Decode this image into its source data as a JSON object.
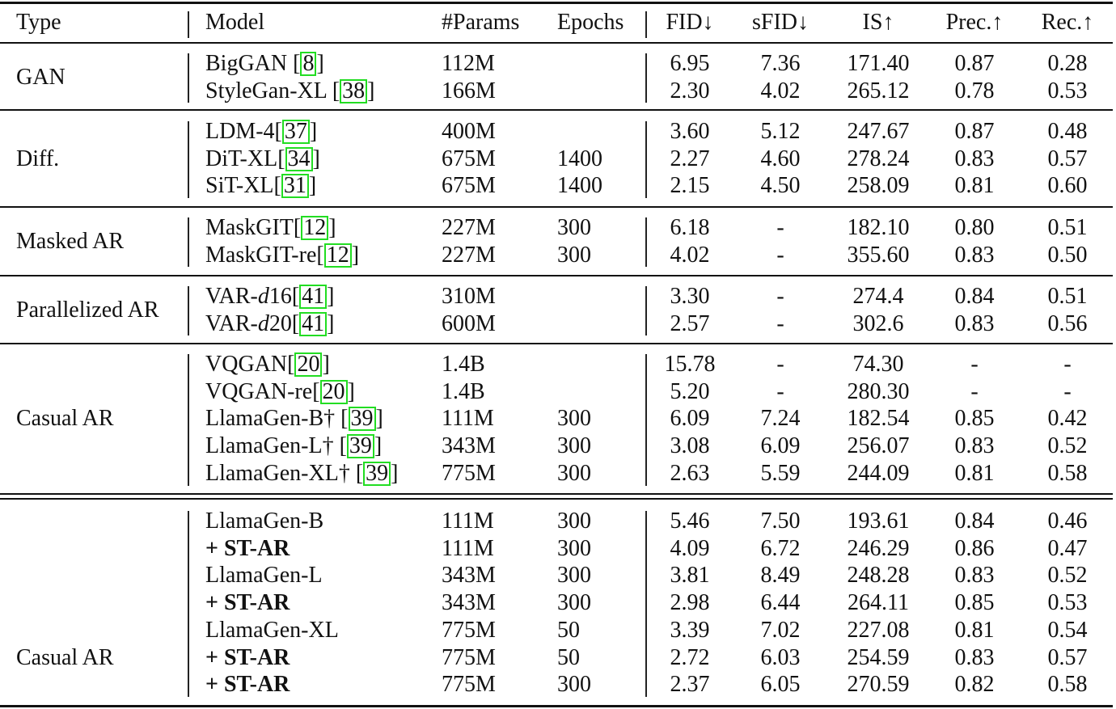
{
  "header": {
    "type": "Type",
    "model": "Model",
    "params": "#Params",
    "epochs": "Epochs",
    "fid": "FID↓",
    "sfid": "sFID↓",
    "is": "IS↑",
    "prec": "Prec.↑",
    "rec": "Rec.↑"
  },
  "colors": {
    "cite_border": "#22dd22",
    "rule": "#111111"
  },
  "groups": [
    {
      "type": "GAN",
      "rows": [
        {
          "model": "BigGAN ",
          "cite": "8",
          "params": "112M",
          "epochs": "",
          "fid": "6.95",
          "sfid": "7.36",
          "is": "171.40",
          "prec": "0.87",
          "rec": "0.28"
        },
        {
          "model": "StyleGan-XL ",
          "cite": "38",
          "params": "166M",
          "epochs": "",
          "fid": "2.30",
          "sfid": "4.02",
          "is": "265.12",
          "prec": "0.78",
          "rec": "0.53"
        }
      ]
    },
    {
      "type": "Diff.",
      "rows": [
        {
          "model": "LDM-4",
          "cite": "37",
          "params": "400M",
          "epochs": "",
          "fid": "3.60",
          "sfid": "5.12",
          "is": "247.67",
          "prec": "0.87",
          "rec": "0.48"
        },
        {
          "model": "DiT-XL",
          "cite": "34",
          "params": "675M",
          "epochs": "1400",
          "fid": "2.27",
          "sfid": "4.60",
          "is": "278.24",
          "prec": "0.83",
          "rec": "0.57"
        },
        {
          "model": "SiT-XL",
          "cite": "31",
          "params": "675M",
          "epochs": "1400",
          "fid": "2.15",
          "sfid": "4.50",
          "is": "258.09",
          "prec": "0.81",
          "rec": "0.60"
        }
      ]
    },
    {
      "type": "Masked AR",
      "rows": [
        {
          "model": "MaskGIT",
          "cite": "12",
          "params": "227M",
          "epochs": "300",
          "fid": "6.18",
          "sfid": "-",
          "is": "182.10",
          "prec": "0.80",
          "rec": "0.51"
        },
        {
          "model": "MaskGIT-re",
          "cite": "12",
          "params": "227M",
          "epochs": "300",
          "fid": "4.02",
          "sfid": "-",
          "is": "355.60",
          "prec": "0.83",
          "rec": "0.50"
        }
      ]
    },
    {
      "type": "Parallelized AR",
      "rows": [
        {
          "model": "VAR-",
          "model_it": "d",
          "model_suffix": "16",
          "cite": "41",
          "params": "310M",
          "epochs": "",
          "fid": "3.30",
          "sfid": "-",
          "is": "274.4",
          "prec": "0.84",
          "rec": "0.51"
        },
        {
          "model": "VAR-",
          "model_it": "d",
          "model_suffix": "20",
          "cite": "41",
          "params": "600M",
          "epochs": "",
          "fid": "2.57",
          "sfid": "-",
          "is": "302.6",
          "prec": "0.83",
          "rec": "0.56"
        }
      ]
    },
    {
      "type": "Casual AR",
      "rows": [
        {
          "model": "VQGAN",
          "cite": "20",
          "params": "1.4B",
          "epochs": "",
          "fid": "15.78",
          "sfid": "-",
          "is": "74.30",
          "prec": "-",
          "rec": "-"
        },
        {
          "model": "VQGAN-re",
          "cite": "20",
          "params": "1.4B",
          "epochs": "",
          "fid": "5.20",
          "sfid": "-",
          "is": "280.30",
          "prec": "-",
          "rec": "-"
        },
        {
          "model": "LlamaGen-B† ",
          "cite": "39",
          "params": "111M",
          "epochs": "300",
          "fid": "6.09",
          "sfid": "7.24",
          "is": "182.54",
          "prec": "0.85",
          "rec": "0.42"
        },
        {
          "model": "LlamaGen-L† ",
          "cite": "39",
          "params": "343M",
          "epochs": "300",
          "fid": "3.08",
          "sfid": "6.09",
          "is": "256.07",
          "prec": "0.83",
          "rec": "0.52"
        },
        {
          "model": "LlamaGen-XL† ",
          "cite": "39",
          "params": "775M",
          "epochs": "300",
          "fid": "2.63",
          "sfid": "5.59",
          "is": "244.09",
          "prec": "0.81",
          "rec": "0.58"
        }
      ]
    },
    {
      "type": "Casual AR",
      "rows": [
        {
          "model": "LlamaGen-B",
          "params": "111M",
          "epochs": "300",
          "fid": "5.46",
          "sfid": "7.50",
          "is": "193.61",
          "prec": "0.84",
          "rec": "0.46"
        },
        {
          "model": "+ ST-AR",
          "bold": true,
          "params": "111M",
          "epochs": "300",
          "fid": "4.09",
          "sfid": "6.72",
          "is": "246.29",
          "prec": "0.86",
          "rec": "0.47"
        },
        {
          "model": "LlamaGen-L",
          "params": "343M",
          "epochs": "300",
          "fid": "3.81",
          "sfid": "8.49",
          "is": "248.28",
          "prec": "0.83",
          "rec": "0.52"
        },
        {
          "model": "+ ST-AR",
          "bold": true,
          "params": "343M",
          "epochs": "300",
          "fid": "2.98",
          "sfid": "6.44",
          "is": "264.11",
          "prec": "0.85",
          "rec": "0.53"
        },
        {
          "model": "LlamaGen-XL",
          "params": "775M",
          "epochs": "50",
          "fid": "3.39",
          "sfid": "7.02",
          "is": "227.08",
          "prec": "0.81",
          "rec": "0.54"
        },
        {
          "model": "+ ST-AR",
          "bold": true,
          "params": "775M",
          "epochs": "50",
          "fid": "2.72",
          "sfid": "6.03",
          "is": "254.59",
          "prec": "0.83",
          "rec": "0.57"
        },
        {
          "model": "+ ST-AR",
          "bold": true,
          "params": "775M",
          "epochs": "300",
          "fid": "2.37",
          "sfid": "6.05",
          "is": "270.59",
          "prec": "0.82",
          "rec": "0.58"
        }
      ]
    }
  ]
}
